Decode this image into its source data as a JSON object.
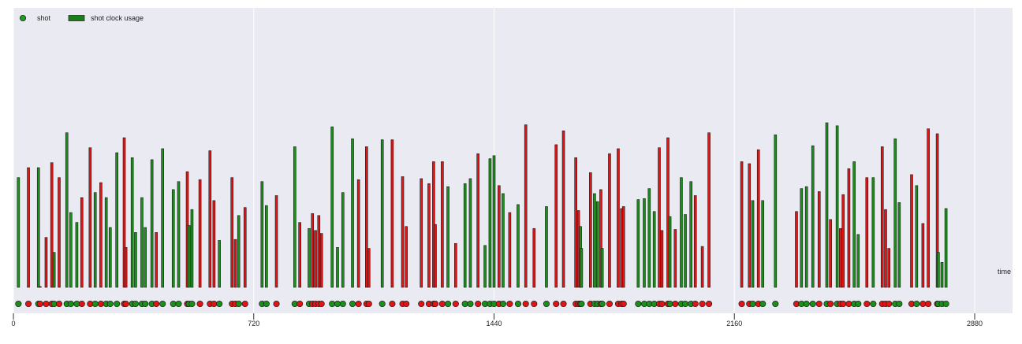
{
  "chart_data": {
    "type": "bar",
    "title": "",
    "xlabel": "time",
    "ylabel": "",
    "xlim": [
      0,
      2880
    ],
    "ylim": [
      0,
      24
    ],
    "x_ticks": [
      0,
      720,
      1440,
      2160,
      2880
    ],
    "grid": true,
    "legend_placement": "top-left",
    "legend": [
      {
        "label": "shot",
        "marker": "circle",
        "color": "#1f9d1f"
      },
      {
        "label": "shot clock usage",
        "marker": "rect",
        "color": "#1a7f1a"
      }
    ],
    "period_breaks": [
      720,
      1440,
      2160
    ],
    "colors": {
      "made": "#1a8f1a",
      "missed": "#e01515",
      "background": "#eaeaf2",
      "gridline": "#ffffff",
      "edge": "#1a1a1a"
    },
    "series": [
      {
        "name": "shot",
        "values": [
          [
            15,
            11,
            "made"
          ],
          [
            45,
            12,
            "missed"
          ],
          [
            75,
            12,
            "made"
          ],
          [
            80,
            0,
            "missed"
          ],
          [
            98,
            5,
            "missed"
          ],
          [
            115,
            12.5,
            "missed"
          ],
          [
            122,
            3.5,
            "made"
          ],
          [
            137,
            11,
            "missed"
          ],
          [
            160,
            15.5,
            "made"
          ],
          [
            172,
            7.5,
            "made"
          ],
          [
            190,
            6.5,
            "made"
          ],
          [
            205,
            9,
            "missed"
          ],
          [
            230,
            14,
            "missed"
          ],
          [
            245,
            9.5,
            "made"
          ],
          [
            262,
            10.5,
            "missed"
          ],
          [
            278,
            9,
            "made"
          ],
          [
            290,
            6,
            "made"
          ],
          [
            310,
            13.5,
            "made"
          ],
          [
            332,
            15,
            "missed"
          ],
          [
            337,
            4,
            "missed"
          ],
          [
            356,
            13,
            "made"
          ],
          [
            366,
            5.5,
            "made"
          ],
          [
            385,
            9,
            "made"
          ],
          [
            395,
            6,
            "made"
          ],
          [
            415,
            12.8,
            "made"
          ],
          [
            428,
            5.5,
            "missed"
          ],
          [
            447,
            13.9,
            "made"
          ],
          [
            479,
            9.8,
            "made"
          ],
          [
            495,
            10.6,
            "made"
          ],
          [
            521,
            11.6,
            "missed"
          ],
          [
            526,
            6.2,
            "made"
          ],
          [
            535,
            7.8,
            "made"
          ],
          [
            559,
            10.8,
            "missed"
          ],
          [
            589,
            13.7,
            "missed"
          ],
          [
            601,
            8.7,
            "missed"
          ],
          [
            617,
            4.7,
            "made"
          ],
          [
            655,
            11,
            "missed"
          ],
          [
            665,
            4.8,
            "missed"
          ],
          [
            675,
            7.2,
            "made"
          ],
          [
            694,
            8,
            "missed"
          ],
          [
            745,
            10.6,
            "made"
          ],
          [
            758,
            8.2,
            "made"
          ],
          [
            788,
            9.2,
            "missed"
          ],
          [
            843,
            14.1,
            "made"
          ],
          [
            858,
            6.5,
            "missed"
          ],
          [
            886,
            5.9,
            "made"
          ],
          [
            896,
            7.4,
            "missed"
          ],
          [
            905,
            5.7,
            "missed"
          ],
          [
            915,
            7.2,
            "missed"
          ],
          [
            923,
            5.4,
            "missed"
          ],
          [
            955,
            16.1,
            "made"
          ],
          [
            971,
            4,
            "made"
          ],
          [
            987,
            9.5,
            "made"
          ],
          [
            1016,
            14.9,
            "made"
          ],
          [
            1034,
            10.8,
            "missed"
          ],
          [
            1058,
            14.1,
            "missed"
          ],
          [
            1065,
            3.9,
            "missed"
          ],
          [
            1105,
            14.8,
            "made"
          ],
          [
            1135,
            14.8,
            "missed"
          ],
          [
            1166,
            11.1,
            "missed"
          ],
          [
            1177,
            6.1,
            "missed"
          ],
          [
            1222,
            10.9,
            "missed"
          ],
          [
            1245,
            10.4,
            "missed"
          ],
          [
            1259,
            12.6,
            "missed"
          ],
          [
            1264,
            6.3,
            "missed"
          ],
          [
            1285,
            12.6,
            "missed"
          ],
          [
            1302,
            10.1,
            "made"
          ],
          [
            1325,
            4.4,
            "missed"
          ],
          [
            1353,
            10.4,
            "made"
          ],
          [
            1369,
            10.9,
            "made"
          ],
          [
            1392,
            13.4,
            "missed"
          ],
          [
            1413,
            4.2,
            "made"
          ],
          [
            1428,
            12.9,
            "made"
          ],
          [
            1440,
            13.2,
            "made"
          ],
          [
            1455,
            10.2,
            "missed"
          ],
          [
            1467,
            9.4,
            "made"
          ],
          [
            1487,
            7.5,
            "missed"
          ],
          [
            1512,
            8.3,
            "made"
          ],
          [
            1535,
            16.3,
            "missed"
          ],
          [
            1560,
            5.9,
            "missed"
          ],
          [
            1597,
            8.1,
            "made"
          ],
          [
            1626,
            14.3,
            "missed"
          ],
          [
            1648,
            15.7,
            "missed"
          ],
          [
            1685,
            13,
            "missed"
          ],
          [
            1693,
            7.7,
            "missed"
          ],
          [
            1699,
            6.1,
            "made"
          ],
          [
            1702,
            3.9,
            "made"
          ],
          [
            1729,
            11.5,
            "missed"
          ],
          [
            1741,
            9.4,
            "made"
          ],
          [
            1750,
            8.6,
            "made"
          ],
          [
            1760,
            9.8,
            "missed"
          ],
          [
            1764,
            3.9,
            "made"
          ],
          [
            1786,
            13.4,
            "missed"
          ],
          [
            1812,
            13.9,
            "missed"
          ],
          [
            1822,
            7.9,
            "missed"
          ],
          [
            1828,
            8.1,
            "missed"
          ],
          [
            1872,
            8.8,
            "made"
          ],
          [
            1890,
            8.9,
            "made"
          ],
          [
            1905,
            9.9,
            "made"
          ],
          [
            1920,
            7.6,
            "made"
          ],
          [
            1935,
            14,
            "missed"
          ],
          [
            1943,
            5.7,
            "missed"
          ],
          [
            1961,
            15,
            "missed"
          ],
          [
            1967,
            7.1,
            "made"
          ],
          [
            1983,
            5.8,
            "missed"
          ],
          [
            2001,
            11,
            "made"
          ],
          [
            2013,
            7.3,
            "made"
          ],
          [
            2030,
            10.6,
            "made"
          ],
          [
            2043,
            9.2,
            "missed"
          ],
          [
            2064,
            4.1,
            "missed"
          ],
          [
            2084,
            15.5,
            "missed"
          ],
          [
            2182,
            12.6,
            "missed"
          ],
          [
            2205,
            12.4,
            "missed"
          ],
          [
            2215,
            8.7,
            "made"
          ],
          [
            2232,
            13.8,
            "missed"
          ],
          [
            2245,
            8.7,
            "made"
          ],
          [
            2283,
            15.3,
            "made"
          ],
          [
            2346,
            7.6,
            "missed"
          ],
          [
            2361,
            9.9,
            "made"
          ],
          [
            2376,
            10.1,
            "made"
          ],
          [
            2395,
            14.2,
            "made"
          ],
          [
            2414,
            9.6,
            "missed"
          ],
          [
            2437,
            16.5,
            "made"
          ],
          [
            2448,
            6.8,
            "missed"
          ],
          [
            2468,
            16.2,
            "made"
          ],
          [
            2478,
            5.9,
            "missed"
          ],
          [
            2486,
            9.3,
            "missed"
          ],
          [
            2503,
            11.9,
            "missed"
          ],
          [
            2519,
            12.6,
            "made"
          ],
          [
            2531,
            5.3,
            "made"
          ],
          [
            2557,
            11,
            "missed"
          ],
          [
            2576,
            11,
            "made"
          ],
          [
            2603,
            14.1,
            "missed"
          ],
          [
            2613,
            7.8,
            "missed"
          ],
          [
            2623,
            3.9,
            "missed"
          ],
          [
            2642,
            14.9,
            "made"
          ],
          [
            2654,
            8.5,
            "made"
          ],
          [
            2691,
            11.3,
            "missed"
          ],
          [
            2706,
            10.2,
            "made"
          ],
          [
            2725,
            6.4,
            "missed"
          ],
          [
            2741,
            15.9,
            "missed"
          ],
          [
            2768,
            15.4,
            "missed"
          ],
          [
            2771,
            3.5,
            "made"
          ],
          [
            2782,
            2.5,
            "made"
          ],
          [
            2794,
            7.9,
            "made"
          ]
        ]
      }
    ]
  }
}
